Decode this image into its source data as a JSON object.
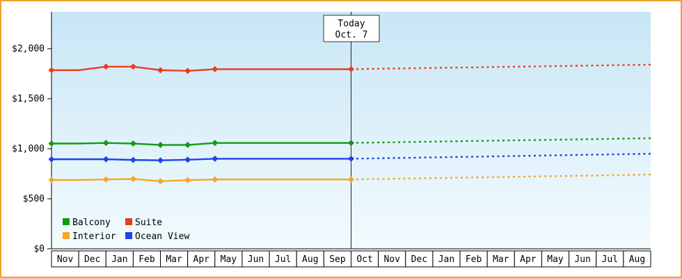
{
  "frame": {
    "border_color": "#f0a330"
  },
  "chart_data": {
    "type": "line",
    "title": "",
    "x_categories": [
      "Nov",
      "Dec",
      "Jan",
      "Feb",
      "Mar",
      "Apr",
      "May",
      "Jun",
      "Jul",
      "Aug",
      "Sep",
      "Oct",
      "Nov",
      "Dec",
      "Jan",
      "Feb",
      "Mar",
      "Apr",
      "May",
      "Jun",
      "Jul",
      "Aug"
    ],
    "today_index": 11,
    "today_label": {
      "line1": "Today",
      "line2": "Oct. 7"
    },
    "y_ticks": [
      {
        "value": 0,
        "label": "$0"
      },
      {
        "value": 500,
        "label": "$500"
      },
      {
        "value": 1000,
        "label": "$1,000"
      },
      {
        "value": 1500,
        "label": "$1,500"
      },
      {
        "value": 2000,
        "label": "$2,000"
      }
    ],
    "ylim": [
      0,
      2380
    ],
    "grid": false,
    "legend_position": "bottom-left-inside",
    "background_gradient": {
      "top": "#c8e6f6",
      "bottom": "#f3fbfe"
    },
    "series": [
      {
        "name": "Balcony",
        "color": "#149914",
        "values": [
          1052,
          1052,
          1058,
          1052,
          1038,
          1038,
          1058,
          1058,
          1058,
          1058,
          1058,
          1058
        ],
        "forecast_end_value": 1105,
        "marker_indices": [
          0,
          2,
          3,
          4,
          5,
          6,
          11
        ]
      },
      {
        "name": "Suite",
        "color": "#ea3d17",
        "values": [
          1785,
          1785,
          1820,
          1820,
          1785,
          1778,
          1795,
          1795,
          1795,
          1795,
          1795,
          1795
        ],
        "forecast_end_value": 1840,
        "marker_indices": [
          0,
          2,
          3,
          4,
          5,
          6,
          11
        ]
      },
      {
        "name": "Interior",
        "color": "#f5a623",
        "values": [
          688,
          688,
          693,
          698,
          675,
          686,
          693,
          693,
          693,
          693,
          693,
          693
        ],
        "forecast_end_value": 742,
        "marker_indices": [
          0,
          2,
          3,
          4,
          5,
          6,
          11
        ]
      },
      {
        "name": "Ocean View",
        "color": "#1c44ee",
        "values": [
          895,
          895,
          895,
          888,
          884,
          890,
          900,
          900,
          900,
          900,
          900,
          900
        ],
        "forecast_end_value": 950,
        "marker_indices": [
          0,
          2,
          3,
          4,
          5,
          6,
          11
        ]
      }
    ],
    "legend_rows": [
      [
        "Balcony",
        "Suite"
      ],
      [
        "Interior",
        "Ocean View"
      ]
    ]
  }
}
